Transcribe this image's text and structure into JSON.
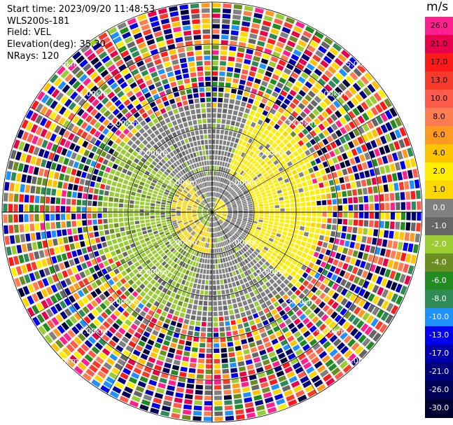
{
  "header": {
    "start_time": "Start time: 2023/09/20 11:48:53",
    "instrument": "WLS200s-181",
    "field": "Field: VEL",
    "elevation": "Elevation(deg): 35.30",
    "nrays": "NRays: 120"
  },
  "legend": {
    "unit": "m/s",
    "entries": [
      {
        "label": "26.0",
        "color": "#ff1f8f"
      },
      {
        "label": "21.0",
        "color": "#e8004d"
      },
      {
        "label": "17.0",
        "color": "#ff1a1a"
      },
      {
        "label": "13.0",
        "color": "#f73a2a"
      },
      {
        "label": "10.0",
        "color": "#ff5a4a"
      },
      {
        "label": "8.0",
        "color": "#ff7d50"
      },
      {
        "label": "6.0",
        "color": "#ff9a20"
      },
      {
        "label": "4.0",
        "color": "#ffc400"
      },
      {
        "label": "2.0",
        "color": "#ffee00"
      },
      {
        "label": "1.0",
        "color": "#ffd700"
      },
      {
        "label": "0.0",
        "color": "#808080"
      },
      {
        "label": "-1.0",
        "color": "#666666"
      },
      {
        "label": "-2.0",
        "color": "#9acd32"
      },
      {
        "label": "-4.0",
        "color": "#6b8e23"
      },
      {
        "label": "-6.0",
        "color": "#228b22"
      },
      {
        "label": "-8.0",
        "color": "#2e8b57"
      },
      {
        "label": "-10.0",
        "color": "#1e90ff"
      },
      {
        "label": "-13.0",
        "color": "#0000ee"
      },
      {
        "label": "-17.0",
        "color": "#0000aa"
      },
      {
        "label": "-21.0",
        "color": "#00007a"
      },
      {
        "label": "-26.0",
        "color": "#000055"
      },
      {
        "label": "-30.0",
        "color": "#000033"
      }
    ]
  },
  "chart_data": {
    "type": "heatmap",
    "projection": "polar",
    "field": "VEL",
    "unit": "m/s",
    "range_rings_km": [
      1.0,
      2.0,
      3.0,
      4.0,
      5.0
    ],
    "range_ring_labels": [
      "1.00km",
      "2.00km",
      "3.00km",
      "4.00km",
      "5.00km"
    ],
    "max_range_km": 5.0,
    "nrays": 120,
    "color_levels": [
      -30.0,
      -26.0,
      -21.0,
      -17.0,
      -13.0,
      -10.0,
      -8.0,
      -6.0,
      -4.0,
      -2.0,
      -1.0,
      0.0,
      1.0,
      2.0,
      4.0,
      6.0,
      8.0,
      10.0,
      13.0,
      17.0,
      21.0,
      26.0
    ],
    "pattern": {
      "near_range_km": [
        0.0,
        2.5
      ],
      "near_range_description": "radial velocity dipole: east/north-east sector positive (~1 to 2 m/s, yellow), west/south-west sector negative (~-2 to -4 m/s, green), north and south sectors near zero (grey)",
      "far_range_km": [
        2.5,
        5.0
      ],
      "far_range_description": "noise: random values spanning the full scale"
    }
  }
}
